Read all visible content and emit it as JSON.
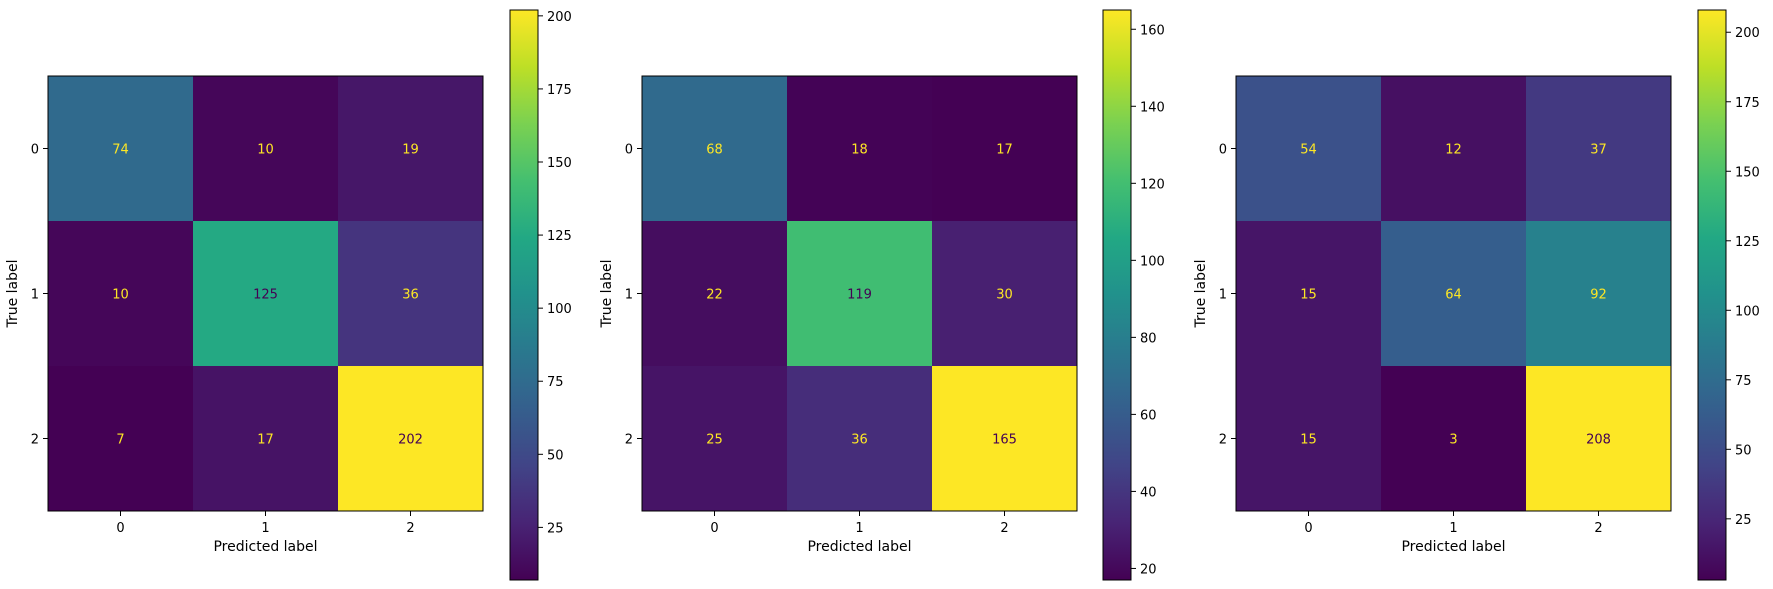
{
  "chart_data": [
    {
      "type": "heatmap",
      "title": "",
      "xlabel": "Predicted label",
      "ylabel": "True label",
      "x_categories": [
        "0",
        "1",
        "2"
      ],
      "y_categories": [
        "0",
        "1",
        "2"
      ],
      "values": [
        [
          74,
          10,
          19
        ],
        [
          10,
          125,
          36
        ],
        [
          7,
          17,
          202
        ]
      ],
      "colormap": "viridis",
      "colorbar": {
        "min": 7,
        "max": 202,
        "ticks": [
          25,
          50,
          75,
          100,
          125,
          150,
          175,
          200
        ]
      },
      "grid": false
    },
    {
      "type": "heatmap",
      "title": "",
      "xlabel": "Predicted label",
      "ylabel": "True label",
      "x_categories": [
        "0",
        "1",
        "2"
      ],
      "y_categories": [
        "0",
        "1",
        "2"
      ],
      "values": [
        [
          68,
          18,
          17
        ],
        [
          22,
          119,
          30
        ],
        [
          25,
          36,
          165
        ]
      ],
      "colormap": "viridis",
      "colorbar": {
        "min": 17,
        "max": 165,
        "ticks": [
          20,
          40,
          60,
          80,
          100,
          120,
          140,
          160
        ]
      },
      "grid": false
    },
    {
      "type": "heatmap",
      "title": "",
      "xlabel": "Predicted label",
      "ylabel": "True label",
      "x_categories": [
        "0",
        "1",
        "2"
      ],
      "y_categories": [
        "0",
        "1",
        "2"
      ],
      "values": [
        [
          54,
          12,
          37
        ],
        [
          15,
          64,
          92
        ],
        [
          15,
          3,
          208
        ]
      ],
      "colormap": "viridis",
      "colorbar": {
        "min": 3,
        "max": 208,
        "ticks": [
          25,
          50,
          75,
          100,
          125,
          150,
          175,
          200
        ]
      },
      "grid": false
    }
  ],
  "colors": {
    "text_on_dark": "#fde725",
    "text_on_light": "#440154",
    "axis_line": "#000000"
  }
}
